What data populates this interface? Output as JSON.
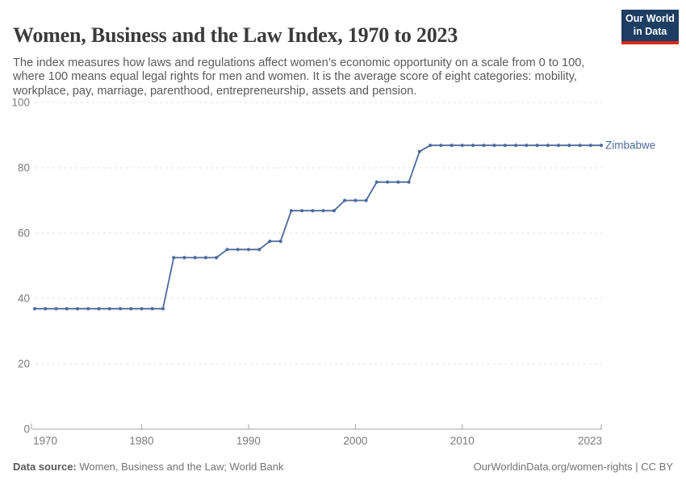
{
  "logo": {
    "line1": "Our World",
    "line2": "in Data"
  },
  "footer": {
    "source_label": "Data source:",
    "source_value": " Women, Business and the Law; World Bank",
    "link": "OurWorldinData.org/women-rights | CC BY"
  },
  "chart_data": {
    "type": "line",
    "title": "Women, Business and the Law Index, 1970 to 2023",
    "subtitle": "The index measures how laws and regulations affect women’s economic opportunity on a scale from 0 to 100, where 100 means equal legal rights for men and women. It is the average score of eight categories: mobility, workplace, pay, marriage, parenthood, entrepreneurship, assets and pension.",
    "xlabel": "",
    "ylabel": "",
    "xlim": [
      1970,
      2023
    ],
    "ylim": [
      0,
      100
    ],
    "xticks": [
      1970,
      1980,
      1990,
      2000,
      2010,
      2023
    ],
    "yticks": [
      0,
      20,
      40,
      60,
      80,
      100
    ],
    "grid": "horizontal-dashed",
    "legend_position": "end-of-line",
    "series": [
      {
        "name": "Zimbabwe",
        "color": "#4C6A9C",
        "x": [
          1970,
          1971,
          1972,
          1973,
          1974,
          1975,
          1976,
          1977,
          1978,
          1979,
          1980,
          1981,
          1982,
          1983,
          1984,
          1985,
          1986,
          1987,
          1988,
          1989,
          1990,
          1991,
          1992,
          1993,
          1994,
          1995,
          1996,
          1997,
          1998,
          1999,
          2000,
          2001,
          2002,
          2003,
          2004,
          2005,
          2006,
          2007,
          2008,
          2009,
          2010,
          2011,
          2012,
          2013,
          2014,
          2015,
          2016,
          2017,
          2018,
          2019,
          2020,
          2021,
          2022,
          2023
        ],
        "values": [
          36.875,
          36.875,
          36.875,
          36.875,
          36.875,
          36.875,
          36.875,
          36.875,
          36.875,
          36.875,
          36.875,
          36.875,
          36.875,
          52.5,
          52.5,
          52.5,
          52.5,
          52.5,
          55,
          55,
          55,
          55,
          57.5,
          57.5,
          66.875,
          66.875,
          66.875,
          66.875,
          66.875,
          70,
          70,
          70,
          75.625,
          75.625,
          75.625,
          75.625,
          85,
          86.875,
          86.875,
          86.875,
          86.875,
          86.875,
          86.875,
          86.875,
          86.875,
          86.875,
          86.875,
          86.875,
          86.875,
          86.875,
          86.875,
          86.875,
          86.875,
          86.875
        ]
      }
    ]
  },
  "colors": {
    "line_blue": "#4C6A9C",
    "logo_navy": "#1d3d63",
    "logo_red": "#d8271d",
    "title_text": "#3b3b3b",
    "subtitle_text": "#5a5a5a",
    "axis_text": "#7a7a7a",
    "gridline": "#e0e0e0",
    "axis_line": "#a3a3a3"
  }
}
